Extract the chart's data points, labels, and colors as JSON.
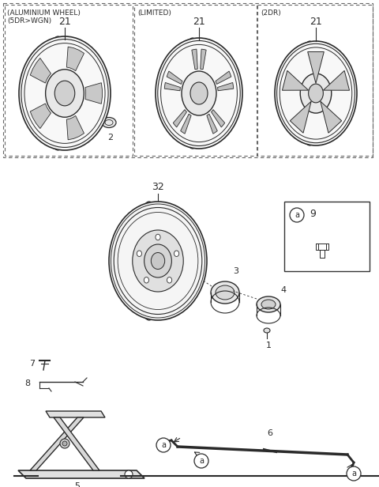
{
  "bg_color": "#ffffff",
  "line_color": "#2a2a2a",
  "fig_width": 4.8,
  "fig_height": 6.16,
  "dpi": 100,
  "labels": {
    "box1_title_1": "(ALUMINIUM WHEEL)",
    "box1_title_2": "(5DR>WGN)",
    "box2_title": "(LIMITED)",
    "box3_title": "(2DR)",
    "num_21": "21",
    "num_2": "2",
    "num_32": "32",
    "num_3": "3",
    "num_4": "4",
    "num_1": "1",
    "num_7": "7",
    "num_8": "8",
    "num_5": "5",
    "num_6": "6",
    "num_9": "9",
    "label_a": "a"
  }
}
